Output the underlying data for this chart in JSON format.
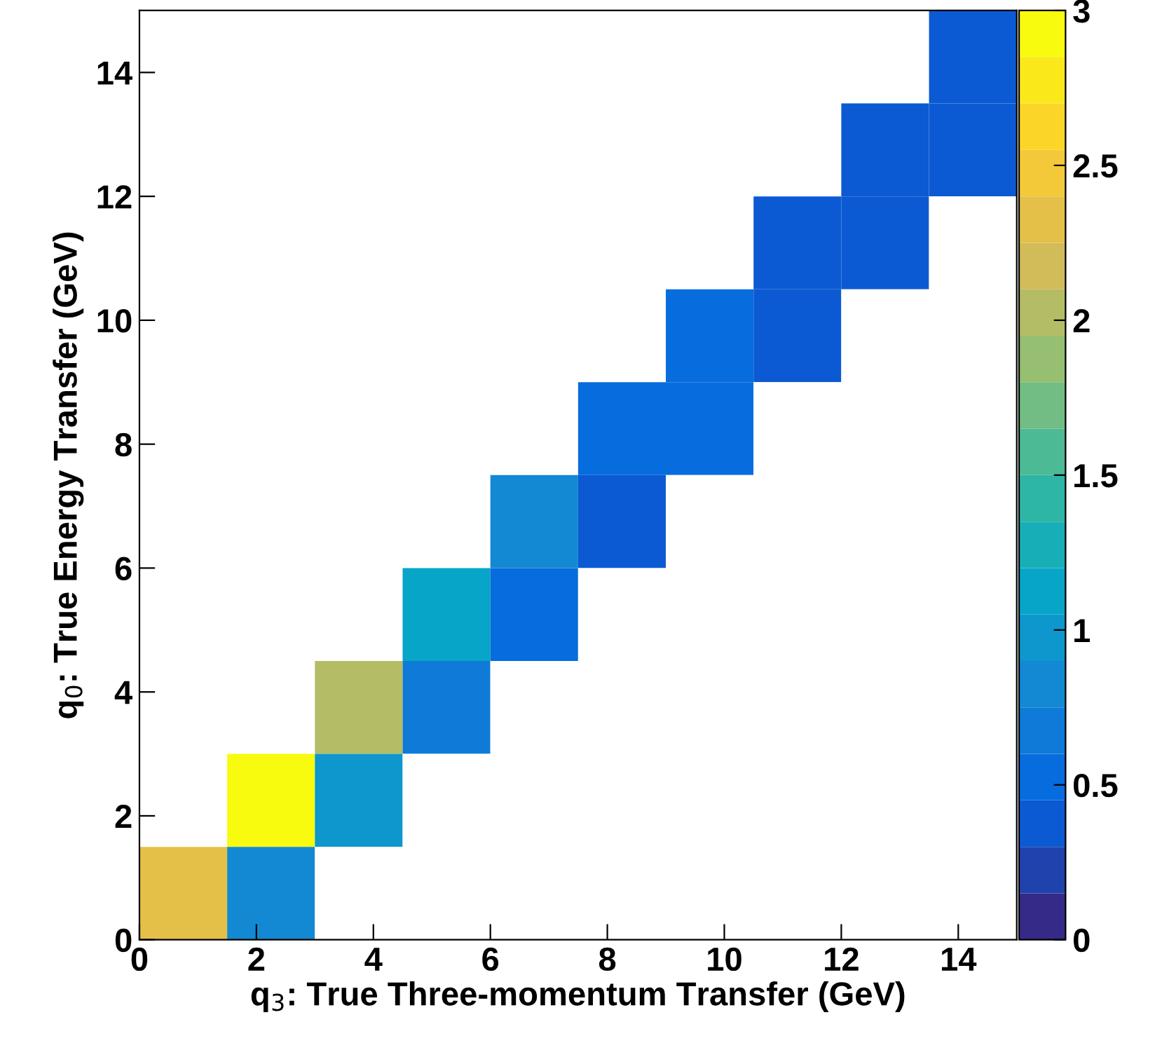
{
  "chart_data": {
    "type": "heatmap",
    "xlabel": "q$_{3}$: True Three-momentum Transfer (GeV)",
    "ylabel": "q$_{0}$: True Energy Transfer (GeV)",
    "x": [
      0.75,
      2.25,
      3.75,
      5.25,
      6.75,
      8.25,
      9.75,
      11.25,
      12.75,
      14.25
    ],
    "y": [
      14.25,
      12.75,
      11.25,
      9.75,
      8.25,
      6.75,
      5.25,
      3.75,
      2.25,
      0.75
    ],
    "cells": [
      [
        null,
        null,
        null,
        null,
        null,
        null,
        null,
        null,
        null,
        0.35
      ],
      [
        null,
        null,
        null,
        null,
        null,
        null,
        null,
        null,
        0.3,
        0.35
      ],
      [
        null,
        null,
        null,
        null,
        null,
        null,
        null,
        0.3,
        0.3,
        null
      ],
      [
        null,
        null,
        null,
        null,
        null,
        null,
        0.5,
        0.3,
        null,
        null
      ],
      [
        null,
        null,
        null,
        null,
        null,
        0.55,
        0.45,
        null,
        null,
        null
      ],
      [
        null,
        null,
        null,
        null,
        0.8,
        0.35,
        null,
        null,
        null,
        null
      ],
      [
        null,
        null,
        null,
        1.1,
        0.45,
        null,
        null,
        null,
        null,
        null
      ],
      [
        null,
        null,
        2.0,
        0.6,
        null,
        null,
        null,
        null,
        null,
        null
      ],
      [
        null,
        2.95,
        0.95,
        null,
        null,
        null,
        null,
        null,
        null,
        null
      ],
      [
        2.3,
        0.8,
        null,
        null,
        null,
        null,
        null,
        null,
        null,
        null
      ]
    ],
    "xlim": [
      0,
      15
    ],
    "xticks": [
      0,
      2,
      4,
      6,
      8,
      10,
      12,
      14
    ],
    "ylim": [
      0,
      15
    ],
    "yticks": [
      0,
      2,
      4,
      6,
      8,
      10,
      12,
      14
    ],
    "clim": [
      0,
      3
    ],
    "cticks": [
      0,
      0.5,
      1,
      1.5,
      2,
      2.5,
      3
    ]
  }
}
